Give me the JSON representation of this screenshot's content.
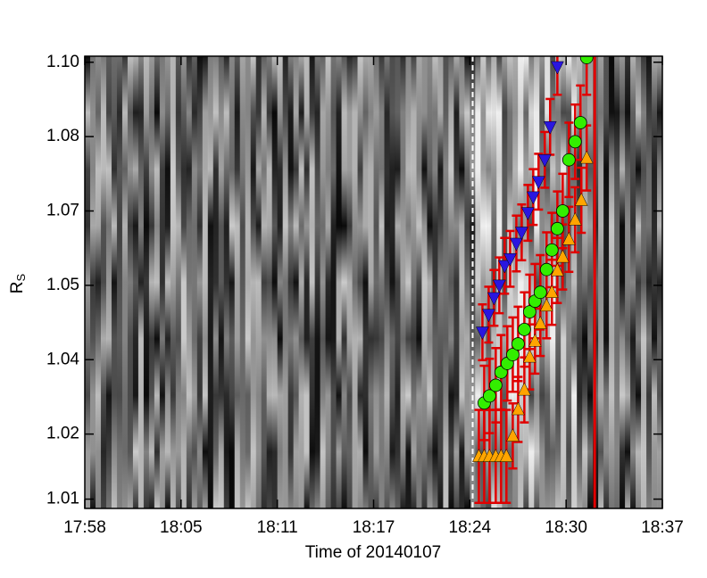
{
  "chart_data": {
    "type": "scatter",
    "xlabel": "Time of 20140107",
    "ylabel": {
      "main": "R",
      "sub": "S"
    },
    "xlim": [
      1078,
      1117
    ],
    "xticks": [
      {
        "value": 1078,
        "label": "17:58"
      },
      {
        "value": 1084.5,
        "label": "18:05"
      },
      {
        "value": 1091,
        "label": "18:11"
      },
      {
        "value": 1097.5,
        "label": "18:17"
      },
      {
        "value": 1104,
        "label": "18:24"
      },
      {
        "value": 1110.5,
        "label": "18:30"
      },
      {
        "value": 1117,
        "label": "18:37"
      }
    ],
    "ylim": [
      1.004,
      1.1013
    ],
    "yticks": [
      {
        "value": 1.006,
        "label": "1.01"
      },
      1.02,
      {
        "value": 1.036,
        "label": "1.04"
      },
      {
        "value": 1.052,
        "label": "1.05"
      },
      {
        "value": 1.068,
        "label": "1.07"
      },
      {
        "value": 1.084,
        "label": "1.08"
      },
      {
        "value": 1.1,
        "label": "1.10"
      }
    ],
    "error_color": "#e00000",
    "vlines": [
      {
        "x": 1104.19,
        "color": "#ffffff",
        "dash": true
      },
      {
        "x": 1112.43,
        "color": "#e00000",
        "dash": false
      }
    ],
    "series": [
      {
        "marker": "triangle-down",
        "color": "#2a16e0",
        "x": [
          1104.85,
          1105.27,
          1105.63,
          1105.99,
          1106.35,
          1106.72,
          1107.14,
          1107.5,
          1107.92,
          1108.28,
          1108.64,
          1109.06,
          1109.42,
          1109.91
        ],
        "values": [
          1.0419,
          1.0457,
          1.0493,
          1.052,
          1.0562,
          1.0577,
          1.061,
          1.0634,
          1.0676,
          1.071,
          1.0743,
          1.079,
          1.0861,
          1.099
        ],
        "errors": [
          0.006,
          0.006,
          0.006,
          0.006,
          0.006,
          0.006,
          0.006,
          0.006,
          0.006,
          0.006,
          0.006,
          0.006,
          0.006,
          0.006
        ]
      },
      {
        "marker": "triangle-up",
        "color": "#ffa500",
        "x": [
          1104.61,
          1104.97,
          1105.33,
          1105.75,
          1106.11,
          1106.47,
          1106.9,
          1107.26,
          1107.68,
          1108.04,
          1108.4,
          1108.76,
          1109.18,
          1109.54,
          1109.91,
          1110.27,
          1110.69,
          1111.11,
          1111.53,
          1111.89
        ],
        "values": [
          1.0152,
          1.0152,
          1.0152,
          1.0152,
          1.0152,
          1.0152,
          1.0196,
          1.0253,
          1.0295,
          1.0366,
          1.04,
          1.0438,
          1.0476,
          1.0505,
          1.0552,
          1.0581,
          1.0619,
          1.0661,
          1.0703,
          1.0794
        ],
        "errors": [
          0.01,
          0.01,
          0.01,
          0.01,
          0.01,
          0.01,
          0.007,
          0.007,
          0.007,
          0.007,
          0.007,
          0.007,
          0.007,
          0.007,
          0.007,
          0.007,
          0.007,
          0.007,
          0.007,
          0.007
        ]
      },
      {
        "marker": "circle",
        "color": "#33ee00",
        "x": [
          1104.97,
          1105.33,
          1105.75,
          1106.11,
          1106.53,
          1106.9,
          1107.26,
          1107.68,
          1108.04,
          1108.4,
          1108.76,
          1109.18,
          1109.54,
          1109.91,
          1110.27,
          1110.69,
          1111.11,
          1111.47,
          1111.89
        ],
        "values": [
          1.0267,
          1.0282,
          1.0305,
          1.0333,
          1.0352,
          1.0371,
          1.0394,
          1.0425,
          1.0463,
          1.0486,
          1.0505,
          1.0554,
          1.0596,
          1.0642,
          1.068,
          1.079,
          1.0829,
          1.087,
          1.101
        ],
        "errors": [
          0.008,
          0.008,
          0.008,
          0.008,
          0.008,
          0.008,
          0.008,
          0.008,
          0.008,
          0.008,
          0.008,
          0.008,
          0.008,
          0.008,
          0.008,
          0.008,
          0.008,
          0.008,
          0.008
        ]
      }
    ]
  }
}
